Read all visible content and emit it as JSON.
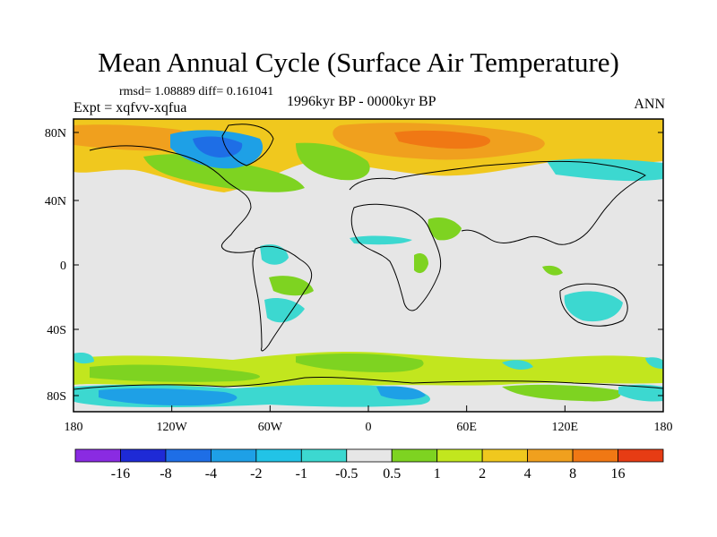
{
  "title": "Mean Annual Cycle (Surface Air Temperature)",
  "stats": "rmsd= 1.08889 diff= 0.161041",
  "period": "1996kyr BP - 0000kyr BP",
  "experiment": "Expt = xqfvv-xqfua",
  "season": "ANN",
  "map": {
    "lat_labels": [
      "80N",
      "40N",
      "0",
      "40S",
      "80S"
    ],
    "lon_labels": [
      "180",
      "120W",
      "60W",
      "0",
      "60E",
      "120E",
      "180"
    ]
  },
  "colorbar": {
    "labels": [
      "-16",
      "-8",
      "-4",
      "-2",
      "-1",
      "-0.5",
      "0.5",
      "1",
      "2",
      "4",
      "8",
      "16"
    ],
    "colors": [
      "#8a2be2",
      "#1e2ad6",
      "#1e6ee6",
      "#1ea0e6",
      "#22c3e6",
      "#3cd8d0",
      "#e6e6e6",
      "#7ed321",
      "#c2e61e",
      "#f0c81e",
      "#f0a01e",
      "#f07814",
      "#e63c14"
    ]
  }
}
